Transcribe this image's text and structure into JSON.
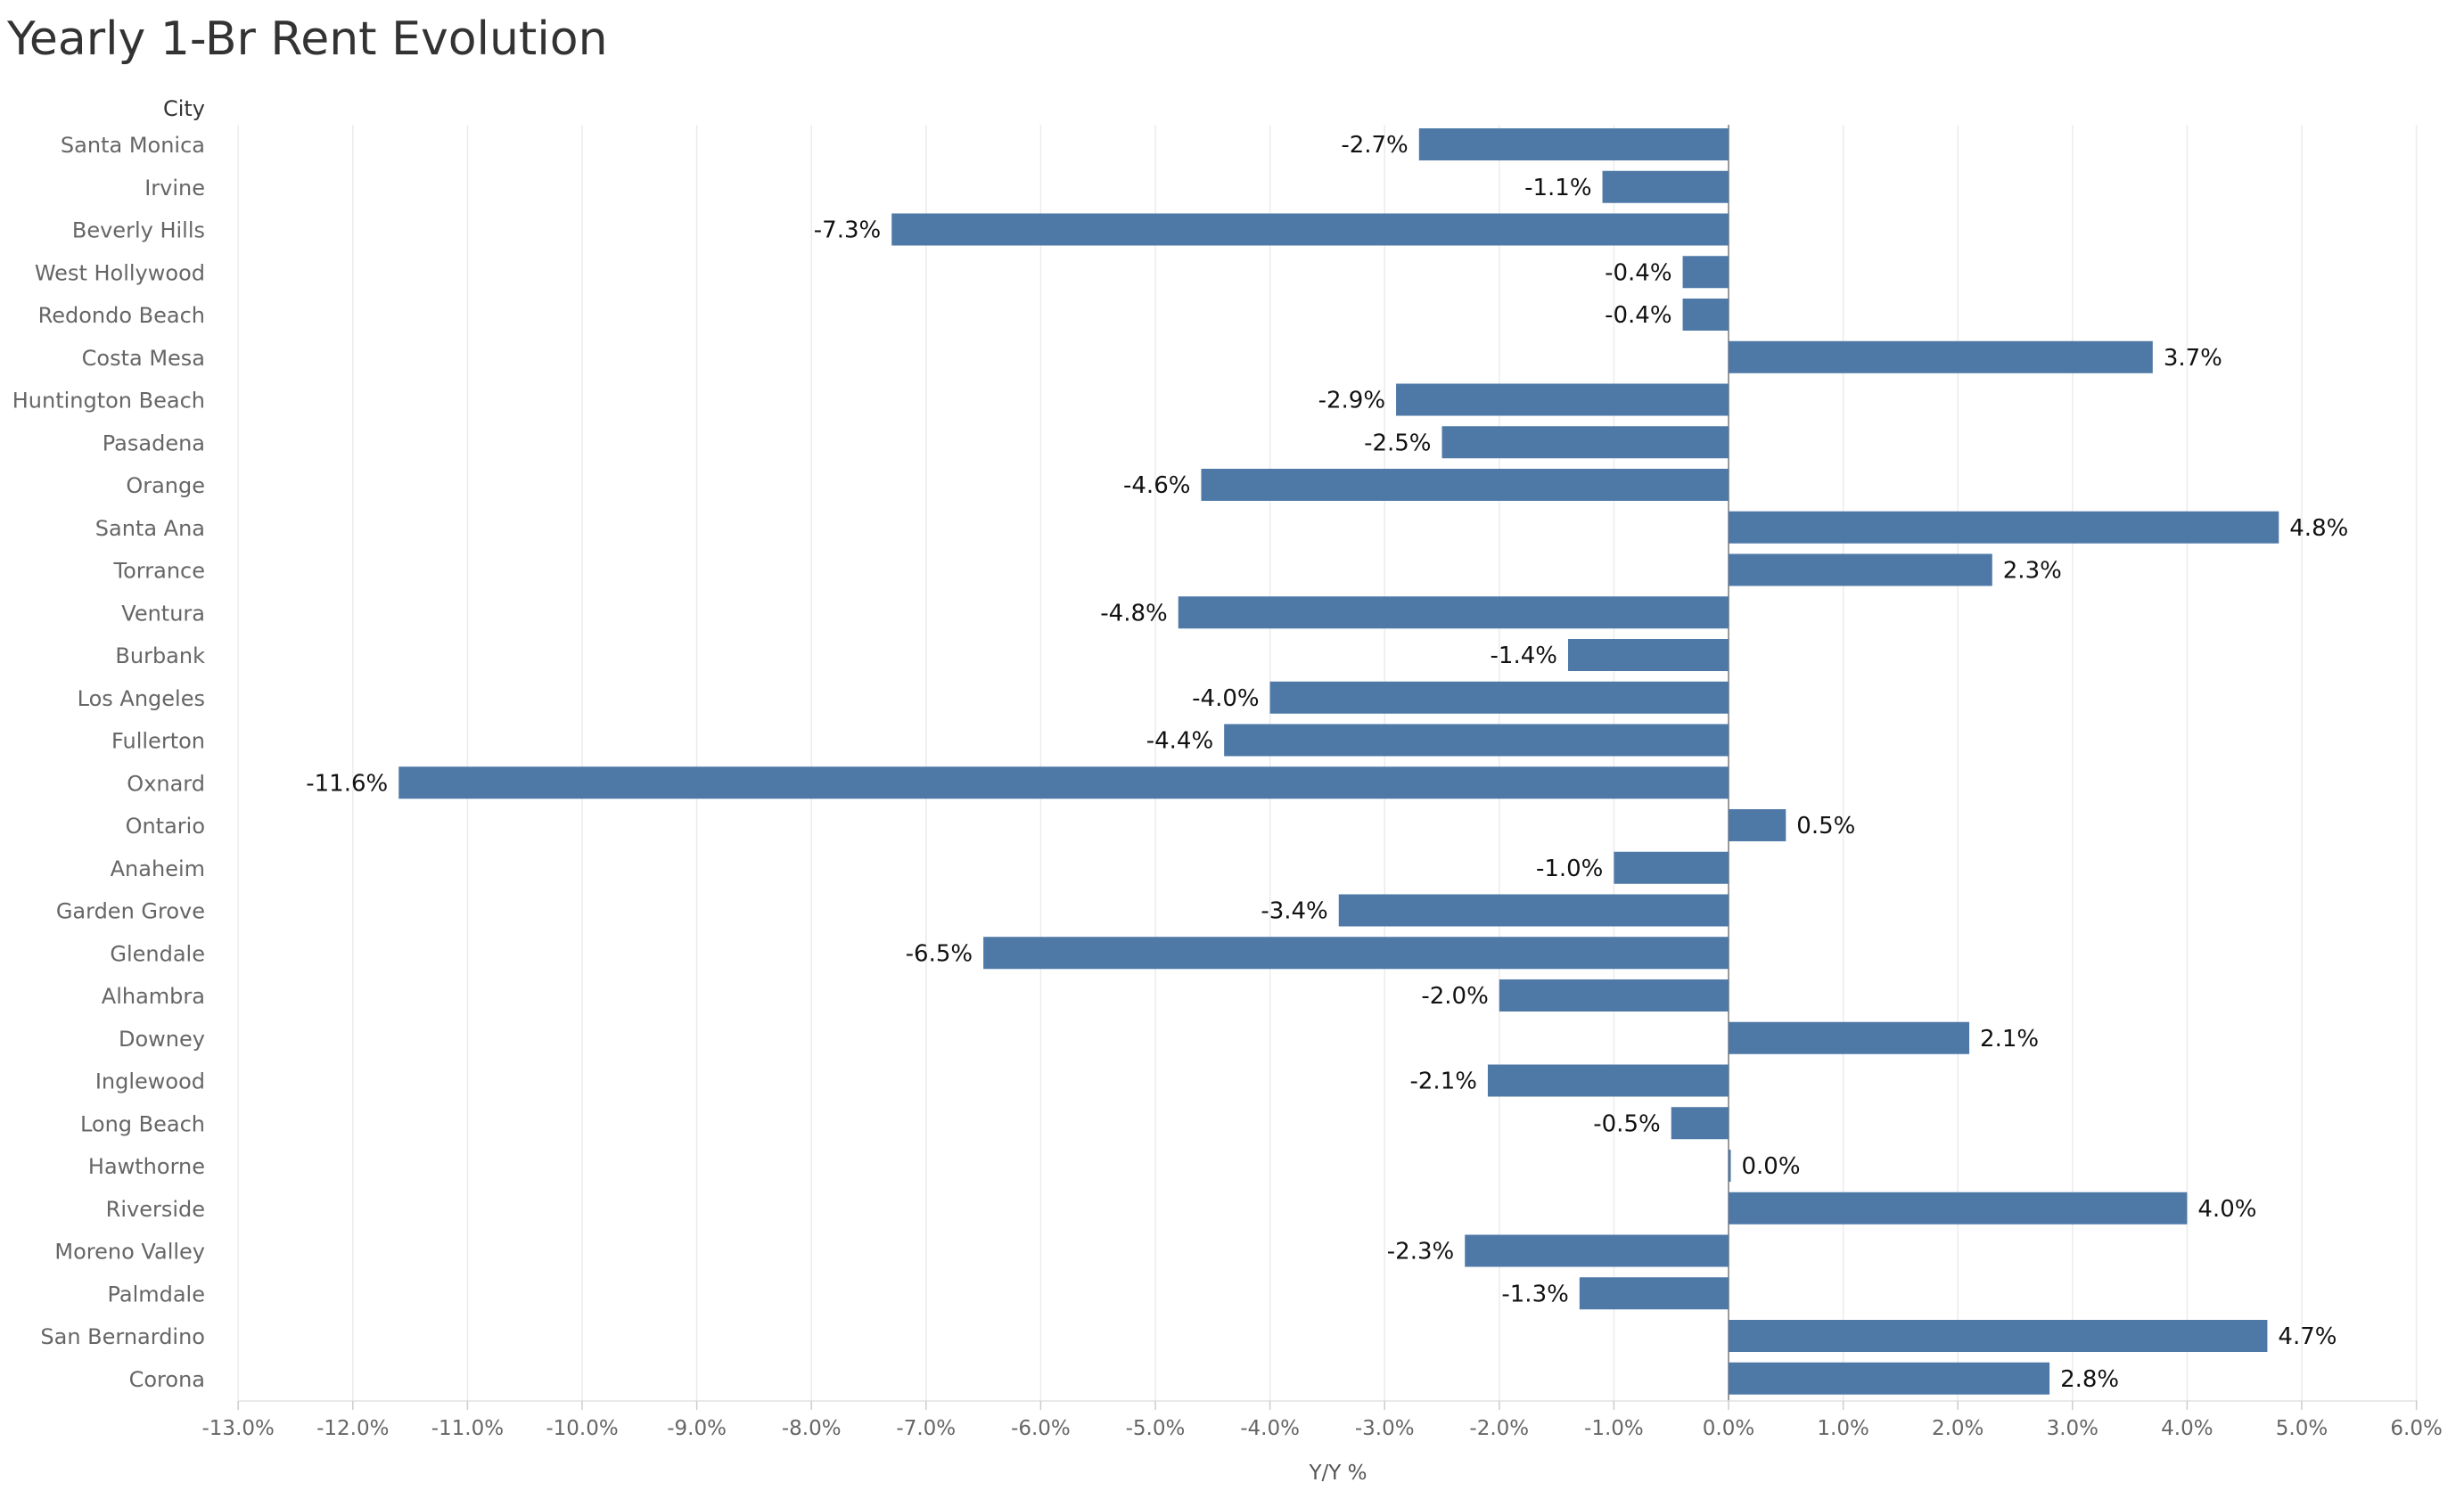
{
  "title": "Yearly 1-Br Rent Evolution",
  "chart_data": {
    "type": "bar",
    "orientation": "horizontal",
    "title": "Yearly 1-Br Rent Evolution",
    "category_header": "City",
    "xlabel": "Y/Y %",
    "xlim": [
      -13.5,
      6.3
    ],
    "xticks": [
      -13,
      -12,
      -11,
      -10,
      -9,
      -8,
      -7,
      -6,
      -5,
      -4,
      -3,
      -2,
      -1,
      0,
      1,
      2,
      3,
      4,
      5,
      6
    ],
    "xtick_labels": [
      "-13.0%",
      "-12.0%",
      "-11.0%",
      "-10.0%",
      "-9.0%",
      "-8.0%",
      "-7.0%",
      "-6.0%",
      "-5.0%",
      "-4.0%",
      "-3.0%",
      "-2.0%",
      "-1.0%",
      "0.0%",
      "1.0%",
      "2.0%",
      "3.0%",
      "4.0%",
      "5.0%",
      "6.0%"
    ],
    "grid": "vertical",
    "bar_color": "#4e79a7",
    "categories": [
      "Santa Monica",
      "Irvine",
      "Beverly Hills",
      "West Hollywood",
      "Redondo Beach",
      "Costa Mesa",
      "Huntington Beach",
      "Pasadena",
      "Orange",
      "Santa Ana",
      "Torrance",
      "Ventura",
      "Burbank",
      "Los Angeles",
      "Fullerton",
      "Oxnard",
      "Ontario",
      "Anaheim",
      "Garden Grove",
      "Glendale",
      "Alhambra",
      "Downey",
      "Inglewood",
      "Long Beach",
      "Hawthorne",
      "Riverside",
      "Moreno Valley",
      "Palmdale",
      "San Bernardino",
      "Corona"
    ],
    "values": [
      -2.7,
      -1.1,
      -7.3,
      -0.4,
      -0.4,
      3.7,
      -2.9,
      -2.5,
      -4.6,
      4.8,
      2.3,
      -4.8,
      -1.4,
      -4.0,
      -4.4,
      -11.6,
      0.5,
      -1.0,
      -3.4,
      -6.5,
      -2.0,
      2.1,
      -2.1,
      -0.5,
      0.0,
      4.0,
      -2.3,
      -1.3,
      4.7,
      2.8
    ],
    "data_labels": [
      "-2.7%",
      "-1.1%",
      "-7.3%",
      "-0.4%",
      "-0.4%",
      "3.7%",
      "-2.9%",
      "-2.5%",
      "-4.6%",
      "4.8%",
      "2.3%",
      "-4.8%",
      "-1.4%",
      "-4.0%",
      "-4.4%",
      "-11.6%",
      "0.5%",
      "-1.0%",
      "-3.4%",
      "-6.5%",
      "-2.0%",
      "2.1%",
      "-2.1%",
      "-0.5%",
      "0.0%",
      "4.0%",
      "-2.3%",
      "-1.3%",
      "4.7%",
      "2.8%"
    ]
  }
}
